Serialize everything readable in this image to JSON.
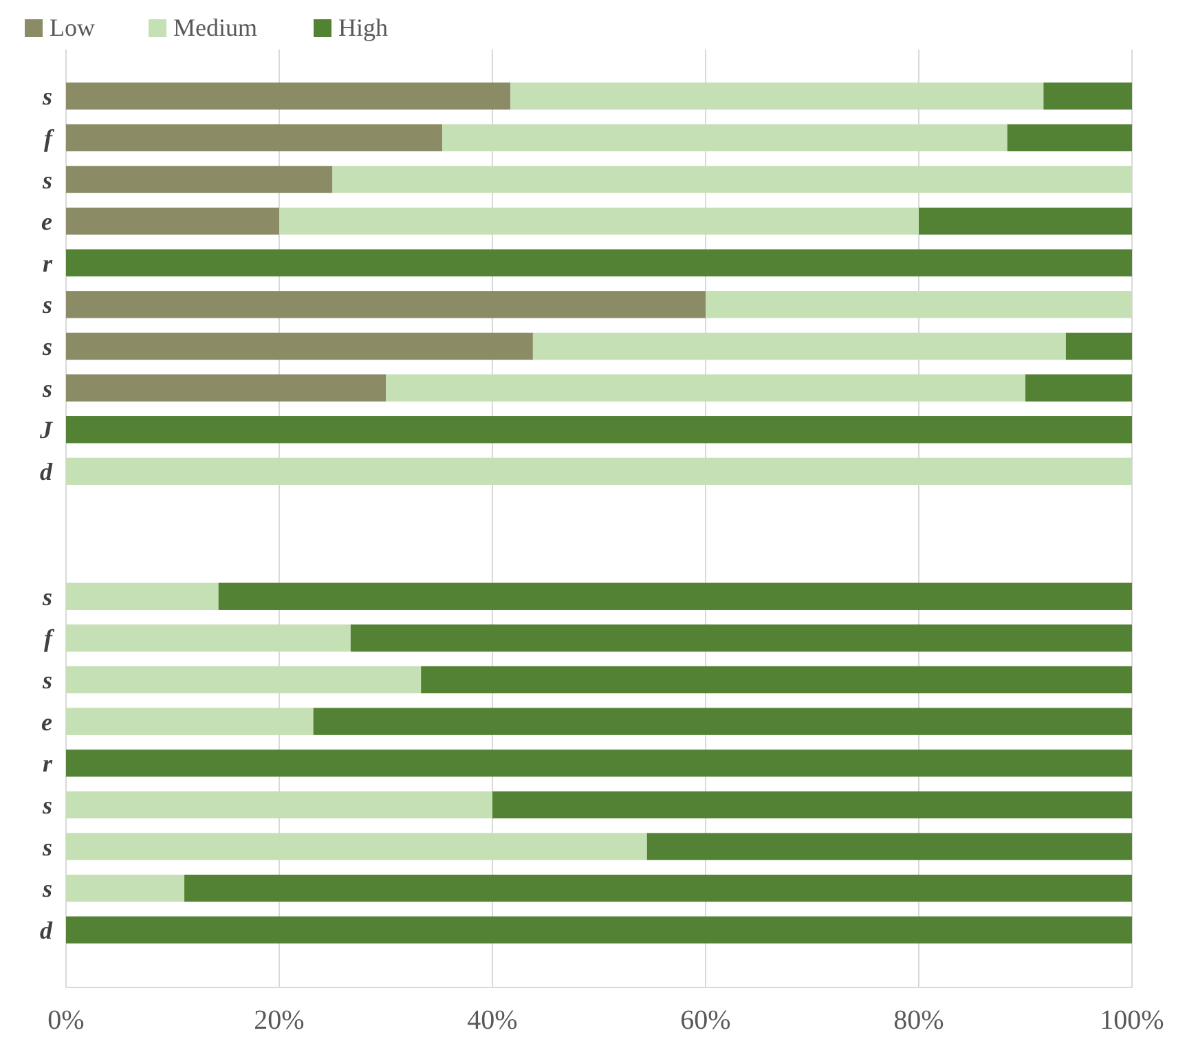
{
  "chart_data": {
    "type": "bar",
    "orientation": "horizontal",
    "stacked": true,
    "categories": [
      "s",
      "f",
      "s",
      "e",
      "r",
      "s",
      "s",
      "s",
      "J",
      "d",
      null,
      null,
      "s",
      "f",
      "s",
      "e",
      "r",
      "s",
      "s",
      "s",
      "d"
    ],
    "series": [
      {
        "name": "Low",
        "color": "#8b8b66",
        "values": [
          41.7,
          35.3,
          25,
          20,
          0,
          60,
          43.8,
          30,
          0,
          0,
          null,
          null,
          0,
          0,
          0,
          0,
          0,
          0,
          0,
          0,
          0
        ]
      },
      {
        "name": "Medium",
        "color": "#c5e0b4",
        "values": [
          50,
          53,
          75,
          60,
          0,
          40,
          50,
          60,
          0,
          100,
          null,
          null,
          14.3,
          26.7,
          33.3,
          23.2,
          0,
          40,
          54.5,
          11.1,
          0
        ]
      },
      {
        "name": "High",
        "color": "#548235",
        "values": [
          8.3,
          11.7,
          0,
          20,
          100,
          0,
          6.2,
          10,
          100,
          0,
          null,
          null,
          85.7,
          73.3,
          66.7,
          76.8,
          100,
          60,
          45.5,
          88.9,
          100
        ]
      }
    ],
    "xlim": [
      0,
      100
    ],
    "xticks": [
      {
        "value": 0,
        "label": "0%"
      },
      {
        "value": 20,
        "label": "20%"
      },
      {
        "value": 40,
        "label": "40%"
      },
      {
        "value": 60,
        "label": "60%"
      },
      {
        "value": 80,
        "label": "80%"
      },
      {
        "value": 100,
        "label": "100%"
      }
    ],
    "grid": "x",
    "legend": "top"
  }
}
